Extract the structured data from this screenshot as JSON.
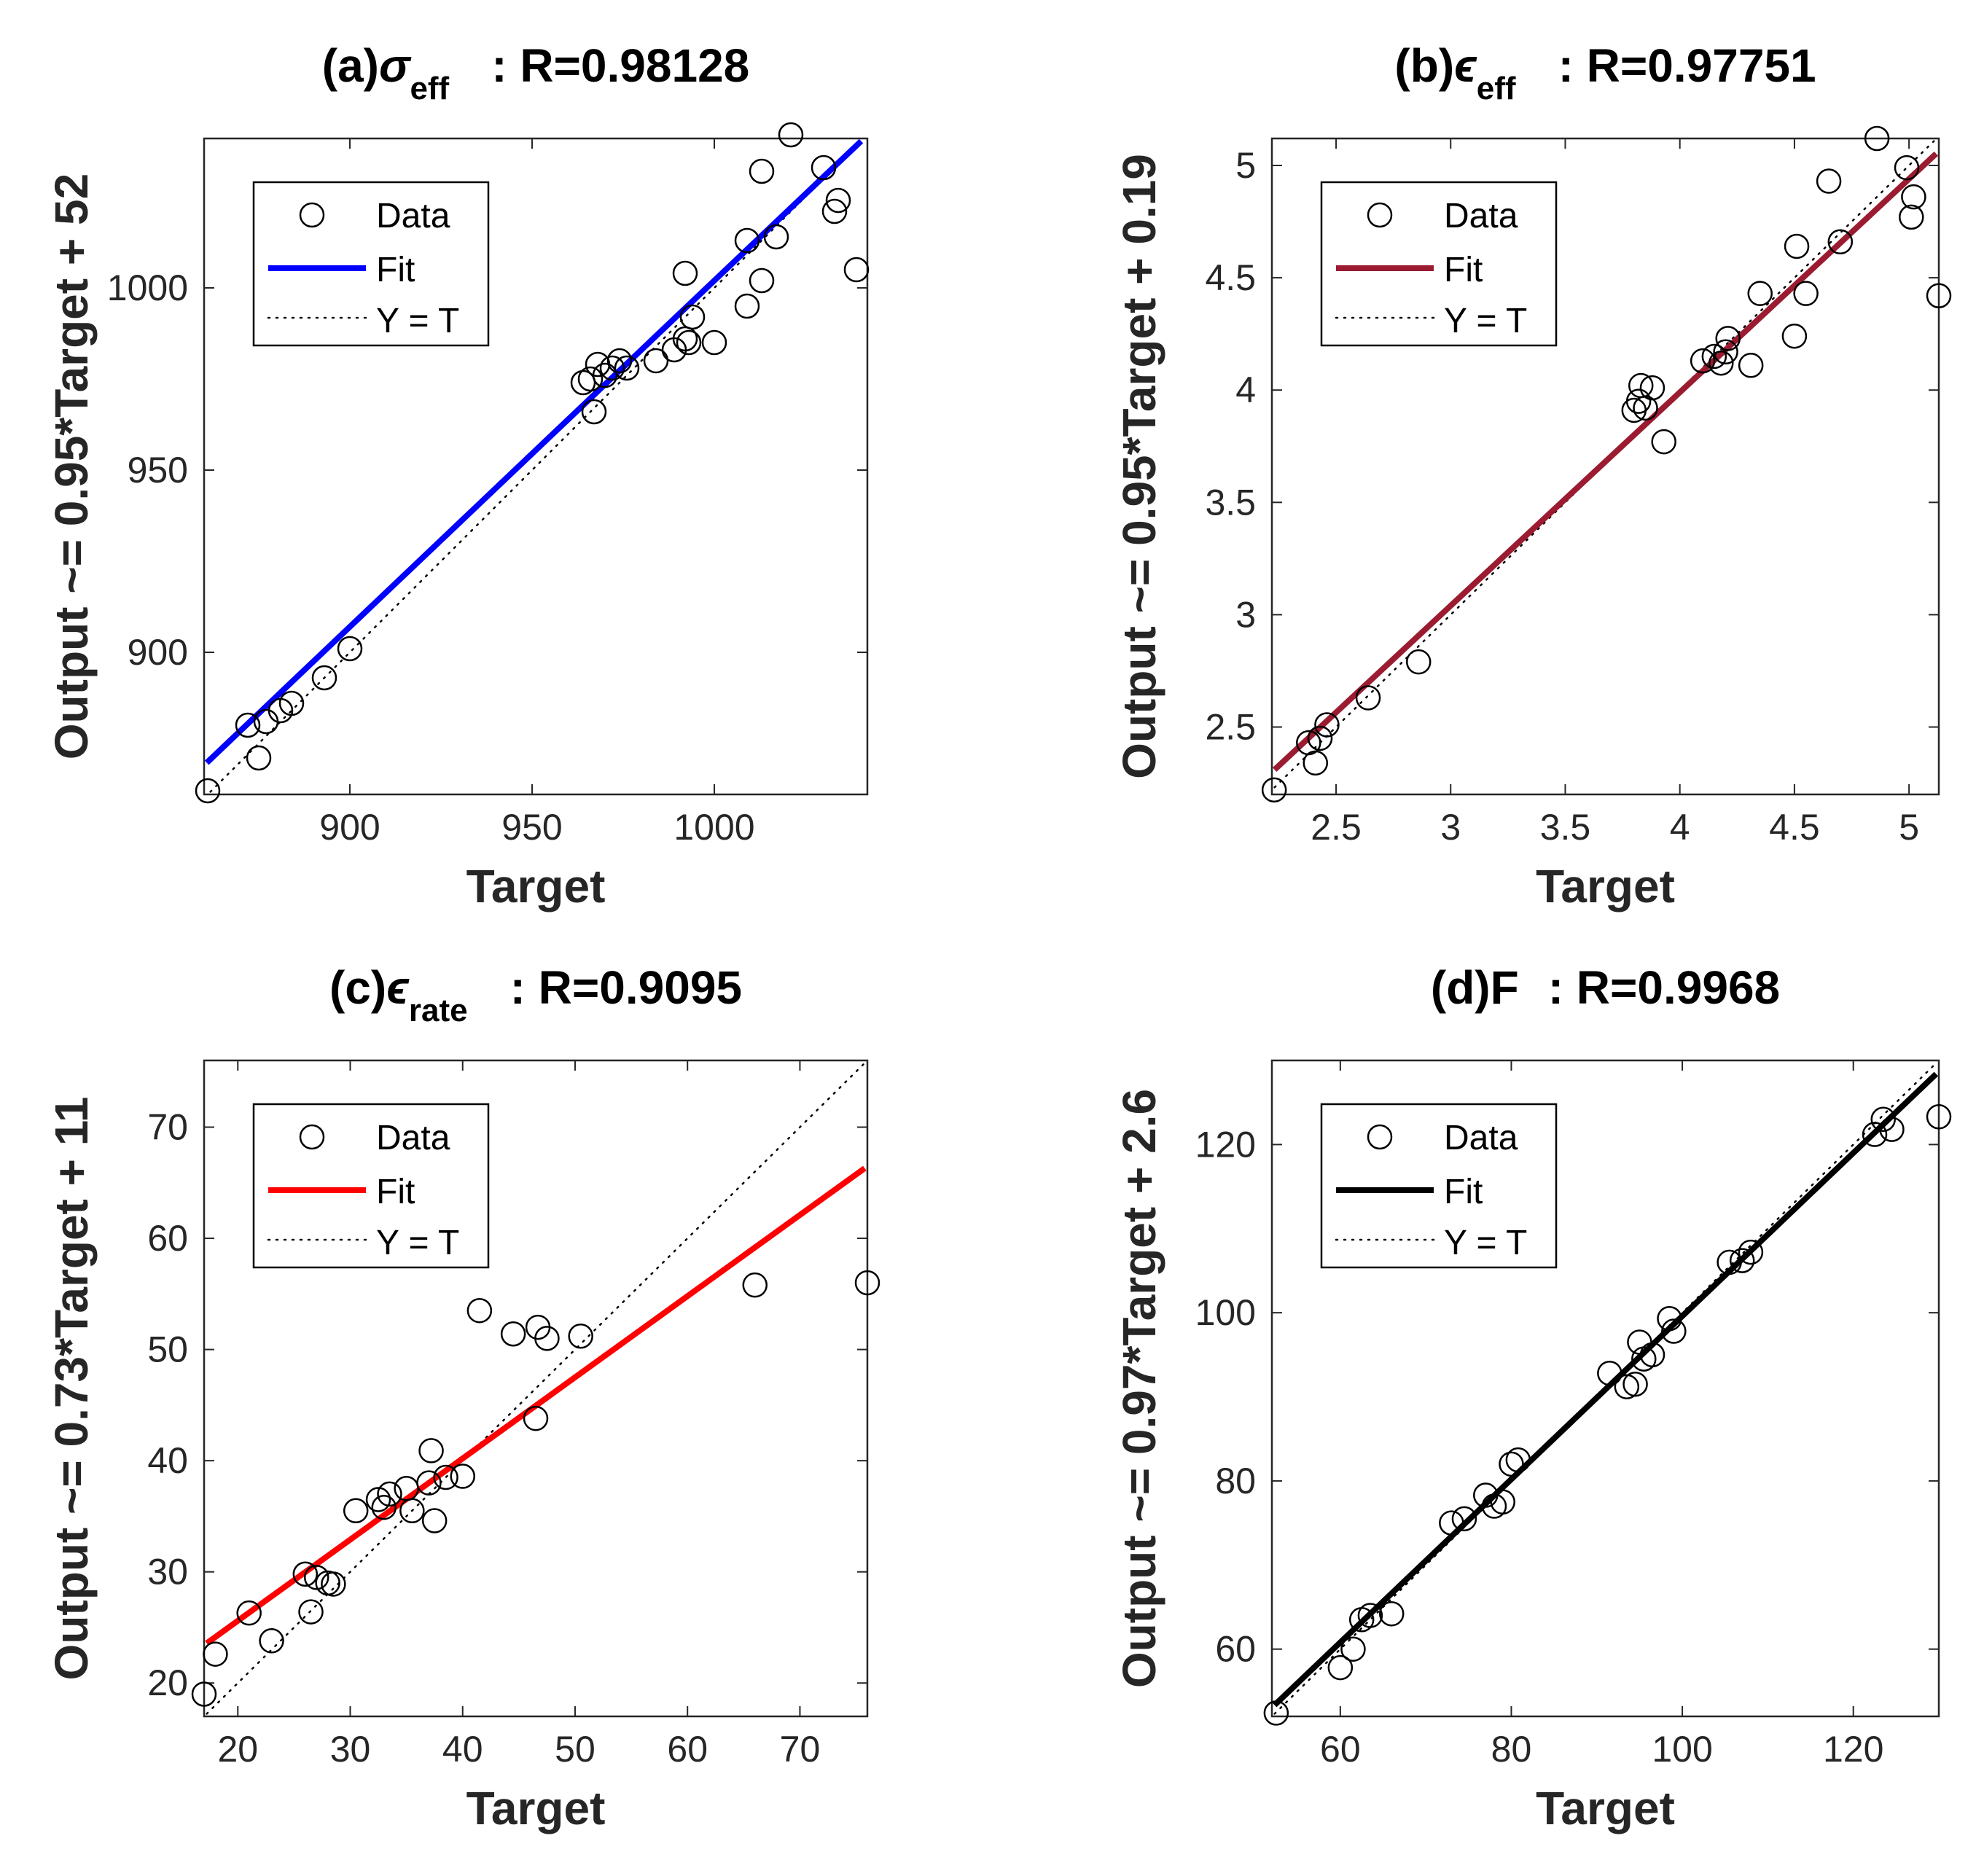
{
  "chart_data": [
    {
      "type": "scatter",
      "panel": "a",
      "title": {
        "prefix": "(a)",
        "symbol": "σ",
        "subscript": "eff",
        "suffix": ": R=0.98128"
      },
      "xlabel": "Target",
      "ylabel": "Output ~= 0.95*Target + 52",
      "xlim": [
        860,
        1042
      ],
      "ylim": [
        861,
        1041
      ],
      "xticks": [
        900,
        950,
        1000
      ],
      "yticks": [
        900,
        950,
        1000
      ],
      "fit": {
        "slope": 0.95,
        "intercept": 52,
        "color": "#0000ff"
      },
      "legend": {
        "position": "top-left",
        "entries": [
          "Data",
          "Fit",
          "Y = T"
        ]
      },
      "points": [
        [
          861,
          862
        ],
        [
          872,
          880
        ],
        [
          875,
          871
        ],
        [
          877,
          881
        ],
        [
          881,
          884
        ],
        [
          884,
          886
        ],
        [
          893,
          893
        ],
        [
          900,
          901
        ],
        [
          964,
          974
        ],
        [
          966,
          975
        ],
        [
          967,
          966
        ],
        [
          968,
          979
        ],
        [
          970,
          976
        ],
        [
          972,
          978
        ],
        [
          974,
          980
        ],
        [
          976,
          978
        ],
        [
          984,
          980
        ],
        [
          989,
          983
        ],
        [
          992,
          986
        ],
        [
          993,
          985
        ],
        [
          994,
          992
        ],
        [
          992,
          1004
        ],
        [
          1000,
          985
        ],
        [
          1009,
          995
        ],
        [
          1009,
          1013
        ],
        [
          1013,
          1032
        ],
        [
          1013,
          1002
        ],
        [
          1017,
          1014
        ],
        [
          1021,
          1042
        ],
        [
          1030,
          1033
        ],
        [
          1033,
          1021
        ],
        [
          1034,
          1024
        ],
        [
          1039,
          1005
        ]
      ]
    },
    {
      "type": "scatter",
      "panel": "b",
      "title": {
        "prefix": "(b)",
        "symbol": "ϵ",
        "subscript": "eff",
        "suffix": ": R=0.97751"
      },
      "xlabel": "Target",
      "ylabel": "Output ~= 0.95*Target + 0.19",
      "xlim": [
        2.22,
        5.13
      ],
      "ylim": [
        2.2,
        5.12
      ],
      "xticks": [
        2.5,
        3,
        3.5,
        4,
        4.5,
        5
      ],
      "yticks": [
        2.5,
        3,
        3.5,
        4,
        4.5,
        5
      ],
      "fit": {
        "slope": 0.95,
        "intercept": 0.19,
        "color": "#9b1b30"
      },
      "legend": {
        "position": "top-left",
        "entries": [
          "Data",
          "Fit",
          "Y = T"
        ]
      },
      "points": [
        [
          2.23,
          2.22
        ],
        [
          2.38,
          2.43
        ],
        [
          2.41,
          2.34
        ],
        [
          2.43,
          2.45
        ],
        [
          2.46,
          2.51
        ],
        [
          2.64,
          2.63
        ],
        [
          2.86,
          2.79
        ],
        [
          3.8,
          3.91
        ],
        [
          3.82,
          3.95
        ],
        [
          3.83,
          4.02
        ],
        [
          3.85,
          3.92
        ],
        [
          3.88,
          4.01
        ],
        [
          3.93,
          3.77
        ],
        [
          4.1,
          4.13
        ],
        [
          4.15,
          4.15
        ],
        [
          4.18,
          4.12
        ],
        [
          4.2,
          4.17
        ],
        [
          4.21,
          4.23
        ],
        [
          4.31,
          4.11
        ],
        [
          4.35,
          4.43
        ],
        [
          4.5,
          4.24
        ],
        [
          4.51,
          4.64
        ],
        [
          4.55,
          4.43
        ],
        [
          4.65,
          4.93
        ],
        [
          4.7,
          4.66
        ],
        [
          4.86,
          5.12
        ],
        [
          4.99,
          4.99
        ],
        [
          5.02,
          4.86
        ],
        [
          5.01,
          4.77
        ],
        [
          5.13,
          4.42
        ]
      ]
    },
    {
      "type": "scatter",
      "panel": "c",
      "title": {
        "prefix": "(c)",
        "symbol": "ϵ",
        "subscript": "rate",
        "suffix": ": R=0.9095"
      },
      "xlabel": "Target",
      "ylabel": "Output ~= 0.73*Target + 11",
      "xlim": [
        17,
        76
      ],
      "ylim": [
        17,
        76
      ],
      "xticks": [
        20,
        30,
        40,
        50,
        60,
        70
      ],
      "yticks": [
        20,
        30,
        40,
        50,
        60,
        70
      ],
      "fit": {
        "slope": 0.73,
        "intercept": 11,
        "color": "#ff0000"
      },
      "legend": {
        "position": "top-left",
        "entries": [
          "Data",
          "Fit",
          "Y = T"
        ]
      },
      "points": [
        [
          17,
          19
        ],
        [
          18,
          22.6
        ],
        [
          21,
          26.3
        ],
        [
          23,
          23.8
        ],
        [
          26,
          29.8
        ],
        [
          26.5,
          26.4
        ],
        [
          27,
          29.5
        ],
        [
          28,
          29
        ],
        [
          28.5,
          28.9
        ],
        [
          30.5,
          35.5
        ],
        [
          32.5,
          36.5
        ],
        [
          33,
          35.8
        ],
        [
          33.5,
          37
        ],
        [
          35,
          37.5
        ],
        [
          35.5,
          35.5
        ],
        [
          37,
          38
        ],
        [
          37.2,
          40.9
        ],
        [
          37.5,
          34.6
        ],
        [
          38.5,
          38.5
        ],
        [
          40,
          38.6
        ],
        [
          41.5,
          53.5
        ],
        [
          44.5,
          51.4
        ],
        [
          46.5,
          43.8
        ],
        [
          46.7,
          52
        ],
        [
          47.5,
          51
        ],
        [
          50.5,
          51.2
        ],
        [
          66,
          55.8
        ],
        [
          76,
          56
        ]
      ]
    },
    {
      "type": "scatter",
      "panel": "d",
      "title": {
        "prefix": "(d)",
        "symbol": "",
        "subscript": "",
        "main": "F",
        "suffix": ": R=0.9968"
      },
      "xlabel": "Target",
      "ylabel": "Output ~= 0.97*Target + 2.6",
      "xlim": [
        52,
        130
      ],
      "ylim": [
        52,
        130
      ],
      "xticks": [
        60,
        80,
        100,
        120
      ],
      "yticks": [
        60,
        80,
        100,
        120
      ],
      "fit": {
        "slope": 0.97,
        "intercept": 2.6,
        "color": "#000000"
      },
      "legend": {
        "position": "top-left",
        "entries": [
          "Data",
          "Fit",
          "Y = T"
        ]
      },
      "points": [
        [
          52.5,
          52.4
        ],
        [
          60,
          57.8
        ],
        [
          61.5,
          60
        ],
        [
          62.5,
          63.5
        ],
        [
          63.5,
          64
        ],
        [
          66,
          64.2
        ],
        [
          73,
          75
        ],
        [
          74.5,
          75.5
        ],
        [
          77,
          78.3
        ],
        [
          78,
          77
        ],
        [
          79,
          77.5
        ],
        [
          80,
          82
        ],
        [
          80.8,
          82.5
        ],
        [
          91.5,
          92.8
        ],
        [
          93.5,
          91.2
        ],
        [
          94.5,
          91.5
        ],
        [
          95,
          96.5
        ],
        [
          95.5,
          94.5
        ],
        [
          96.5,
          95
        ],
        [
          98.5,
          99.3
        ],
        [
          99,
          97.8
        ],
        [
          105.5,
          106
        ],
        [
          107,
          106.2
        ],
        [
          108,
          107.2
        ],
        [
          122.5,
          121.2
        ],
        [
          123.5,
          123
        ],
        [
          124.5,
          121.8
        ],
        [
          130,
          123.3
        ]
      ]
    }
  ]
}
